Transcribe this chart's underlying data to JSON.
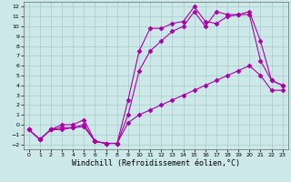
{
  "background_color": "#cce8e8",
  "grid_color": "#aacccc",
  "line_color": "#aa00aa",
  "marker": "D",
  "markersize": 2.5,
  "linewidth": 0.8,
  "xlabel": "Windchill (Refroidissement éolien,°C)",
  "xlabel_fontsize": 6,
  "xlim": [
    -0.5,
    23.5
  ],
  "ylim": [
    -2.5,
    12.5
  ],
  "xticks": [
    0,
    1,
    2,
    3,
    4,
    5,
    6,
    7,
    8,
    9,
    10,
    11,
    12,
    13,
    14,
    15,
    16,
    17,
    18,
    19,
    20,
    21,
    22,
    23
  ],
  "yticks": [
    -2,
    -1,
    0,
    1,
    2,
    3,
    4,
    5,
    6,
    7,
    8,
    9,
    10,
    11,
    12
  ],
  "series": [
    {
      "x": [
        0,
        1,
        2,
        3,
        4,
        5,
        6,
        7,
        8,
        9,
        10,
        11,
        12,
        13,
        14,
        15,
        16,
        17,
        18,
        19,
        20,
        21,
        22,
        23
      ],
      "y": [
        -0.5,
        -1.5,
        -0.5,
        -0.5,
        -0.3,
        -0.2,
        -1.7,
        -1.9,
        -1.9,
        0.2,
        1.0,
        1.5,
        2.0,
        2.5,
        3.0,
        3.5,
        4.0,
        4.5,
        5.0,
        5.5,
        6.0,
        5.0,
        3.5,
        3.5
      ]
    },
    {
      "x": [
        0,
        1,
        2,
        3,
        4,
        5,
        6,
        7,
        8,
        9,
        10,
        11,
        12,
        13,
        14,
        15,
        16,
        17,
        18,
        19,
        20,
        21,
        22,
        23
      ],
      "y": [
        -0.5,
        -1.5,
        -0.5,
        -0.3,
        -0.3,
        0.0,
        -1.7,
        -1.9,
        -1.9,
        2.5,
        7.5,
        9.8,
        9.8,
        10.3,
        10.5,
        12.0,
        10.5,
        10.3,
        11.0,
        11.2,
        11.2,
        6.5,
        4.5,
        4.0
      ]
    },
    {
      "x": [
        0,
        1,
        2,
        3,
        4,
        5,
        6,
        7,
        8,
        9,
        10,
        11,
        12,
        13,
        14,
        15,
        16,
        17,
        18,
        19,
        20,
        21,
        22,
        23
      ],
      "y": [
        -0.5,
        -1.5,
        -0.5,
        0.0,
        0.0,
        0.5,
        -1.7,
        -1.9,
        -1.9,
        1.0,
        5.5,
        7.5,
        8.5,
        9.5,
        10.0,
        11.5,
        10.0,
        11.5,
        11.2,
        11.2,
        11.5,
        8.5,
        4.5,
        4.0
      ]
    }
  ]
}
